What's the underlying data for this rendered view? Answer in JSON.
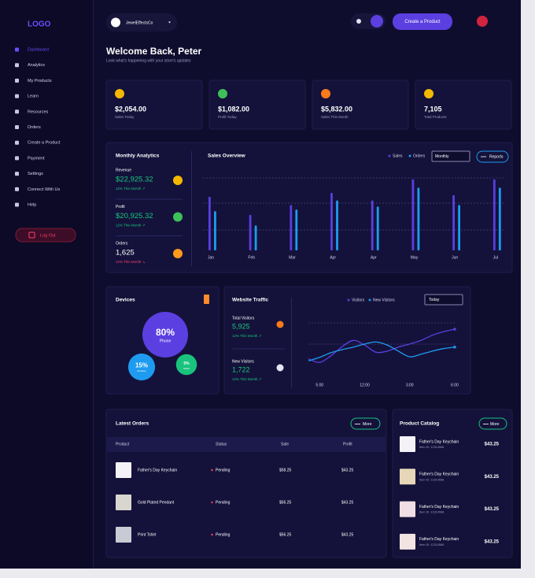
{
  "logo": "LOGO",
  "sidebar": {
    "items": [
      "Dashboard",
      "Analytics",
      "My Products",
      "Learn",
      "Resources",
      "Orders",
      "Create a Product",
      "Payment",
      "Settings",
      "Connect With Us",
      "Help"
    ],
    "logout": "Log Out"
  },
  "topbar": {
    "store": "JewelEffectsCo",
    "create_button": "Create a Product"
  },
  "header": {
    "title": "Welcome Back, Peter",
    "subtitle": "Look what's happening with your store's updates"
  },
  "stats": [
    {
      "value": "$2,054.00",
      "label": "Sales Today"
    },
    {
      "value": "$1,082.00",
      "label": "Profit Today"
    },
    {
      "value": "$5,832.00",
      "label": "Sales This Month"
    },
    {
      "value": "7,105",
      "label": "Total Products"
    }
  ],
  "monthly_analytics": {
    "title": "Monthly Analytics",
    "items": [
      {
        "label": "Revenue",
        "value": "$22,925.32",
        "change": "12% This Month ↗"
      },
      {
        "label": "Profit",
        "value": "$20,925.32",
        "change": "12% This Month ↗"
      },
      {
        "label": "Orders",
        "value": "1,625",
        "change": "12% This Month ↘"
      }
    ]
  },
  "sales_overview": {
    "type": "bar",
    "title": "Sales Overview",
    "period": "Monthly",
    "button": "Reports",
    "categories": [
      "Jan",
      "Feb",
      "Mar",
      "Apr",
      "Apr",
      "May",
      "Jun",
      "Jul"
    ],
    "series": [
      {
        "name": "Sales",
        "color": "#5b3fe0",
        "values": [
          71,
          47,
          60,
          76,
          66,
          94,
          73,
          94
        ]
      },
      {
        "name": "Orders",
        "color": "#1e9bf0",
        "values": [
          52,
          33,
          54,
          66,
          58,
          83,
          60,
          83
        ]
      }
    ],
    "ylim": [
      0,
      100
    ]
  },
  "devices": {
    "type": "bubble",
    "title": "Devices",
    "categories": [
      "Phone",
      "Desktop",
      "Tablet"
    ],
    "values": [
      80,
      15,
      5
    ],
    "value_labels": [
      "80%",
      "15%",
      "5%"
    ],
    "colors": [
      "#5b3fe0",
      "#1e9bf0",
      "#19c37d"
    ]
  },
  "website_traffic": {
    "title": "Website Traffic",
    "period": "Today",
    "stats": [
      {
        "label": "Total Visitors",
        "value": "5,925",
        "change": "12% This Month ↗"
      },
      {
        "label": "New Visitors",
        "value": "1,722",
        "change": "12% This Month ↗"
      }
    ],
    "chart": {
      "type": "line",
      "categories": [
        null,
        "5:00",
        null,
        null,
        null,
        "12:00",
        null,
        null,
        null,
        "3:00",
        null,
        null,
        null,
        "6:00"
      ],
      "series": [
        {
          "name": "Visitors",
          "color": "#5b3fe0",
          "values": [
            22,
            15,
            28,
            46,
            58,
            49,
            35,
            37,
            45,
            51,
            58,
            68,
            75,
            80
          ]
        },
        {
          "name": "New Visitors",
          "color": "#1e9bf0",
          "values": [
            18,
            25,
            34,
            40,
            45,
            51,
            55,
            49,
            37,
            26,
            31,
            37,
            42,
            45
          ]
        }
      ],
      "ylim": [
        0,
        100
      ]
    }
  },
  "latest_orders": {
    "title": "Latest Orders",
    "button": "More",
    "columns": [
      "Product",
      "Status",
      "Sale",
      "Profit"
    ],
    "rows": [
      [
        "Father's Day Keychain",
        "Pending",
        "$58.25",
        "$43.25"
      ],
      [
        "Gold Plated Pendant",
        "Pending",
        "$56.25",
        "$43.25"
      ],
      [
        "Print Tshirt",
        "Pending",
        "$56.25",
        "$43.25"
      ]
    ]
  },
  "product_catalog": {
    "title": "Product Catalog",
    "button": "More",
    "items": [
      {
        "name": "Father's Day Keychain",
        "id": "Item ID: 12314568",
        "price": "$43.25"
      },
      {
        "name": "Father's Day Keychain",
        "id": "Item ID: 12314568",
        "price": "$43.25"
      },
      {
        "name": "Father's Day Keychain",
        "id": "Item ID: 12314568",
        "price": "$43.25"
      },
      {
        "name": "Father's Day Keychain",
        "id": "Item ID: 12314568",
        "price": "$43.25"
      }
    ]
  }
}
